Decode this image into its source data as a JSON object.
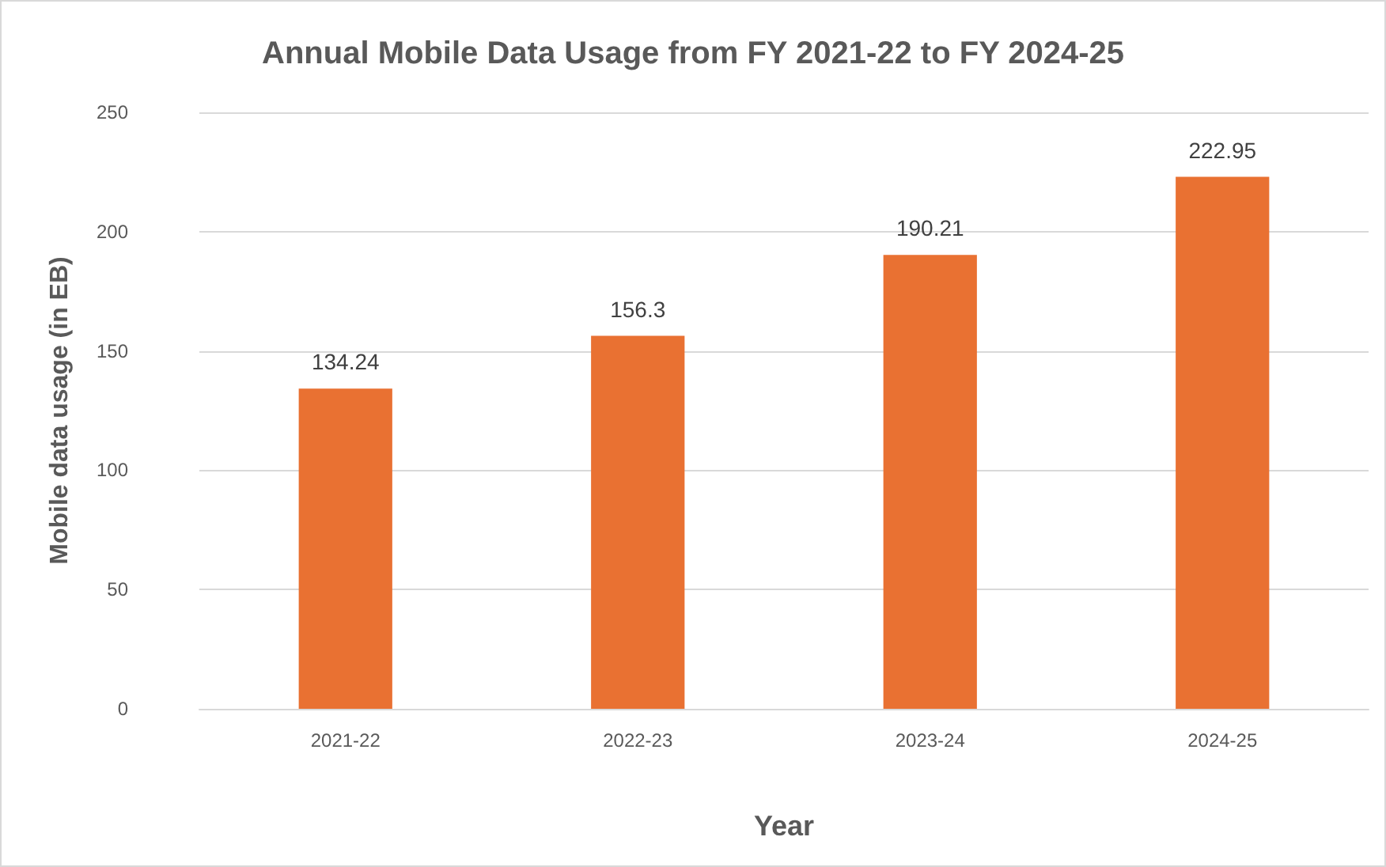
{
  "chart_data": {
    "type": "bar",
    "title": "Annual Mobile Data Usage from FY 2021-22 to FY 2024-25",
    "xlabel": "Year",
    "ylabel": "Mobile data usage (in EB)",
    "categories": [
      "2021-22",
      "2022-23",
      "2023-24",
      "2024-25"
    ],
    "values": [
      134.24,
      156.3,
      190.21,
      222.95
    ],
    "color": "#e97132",
    "ylim": [
      0,
      250
    ],
    "yticks": [
      0,
      50,
      100,
      150,
      200,
      250
    ],
    "grid": "y",
    "data_labels": true
  }
}
